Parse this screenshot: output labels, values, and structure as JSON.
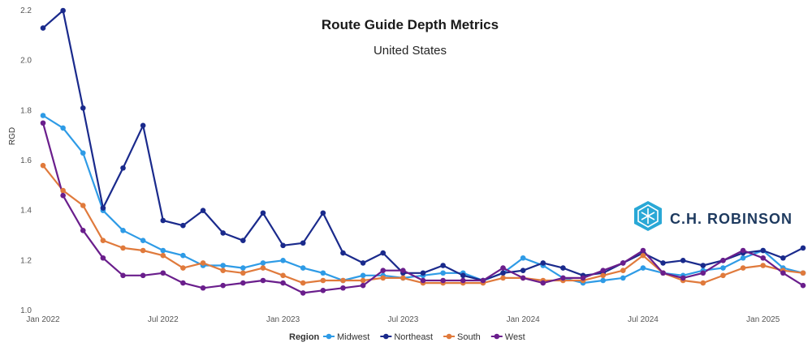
{
  "chart_data": {
    "type": "line",
    "title": "Route Guide Depth Metrics",
    "subtitle": "United States",
    "ylabel": "RGD",
    "ylim": [
      1.0,
      2.2
    ],
    "y_ticks": [
      "1.0",
      "1.2",
      "1.4",
      "1.6",
      "1.8",
      "2.0",
      "2.2"
    ],
    "x_ticks": [
      "Jan 2022",
      "Jul 2022",
      "Jan 2023",
      "Jul 2023",
      "Jan 2024",
      "Jul 2024",
      "Jan 2025"
    ],
    "grid": false,
    "legend_title": "Region",
    "legend_position": "bottom",
    "brand": "C.H. ROBINSON",
    "series": [
      {
        "name": "Midwest",
        "color": "#2e9be6",
        "values": [
          1.78,
          1.73,
          1.63,
          1.4,
          1.32,
          1.28,
          1.24,
          1.22,
          1.18,
          1.18,
          1.17,
          1.19,
          1.2,
          1.17,
          1.15,
          1.12,
          1.14,
          1.14,
          1.13,
          1.14,
          1.15,
          1.15,
          1.12,
          1.15,
          1.21,
          1.18,
          1.13,
          1.11,
          1.12,
          1.13,
          1.17,
          1.15,
          1.14,
          1.16,
          1.17,
          1.21,
          1.24,
          1.17,
          1.15
        ]
      },
      {
        "name": "Northeast",
        "color": "#1a2a8c",
        "values": [
          2.13,
          2.2,
          1.81,
          1.41,
          1.57,
          1.74,
          1.36,
          1.34,
          1.4,
          1.31,
          1.28,
          1.39,
          1.26,
          1.27,
          1.39,
          1.23,
          1.19,
          1.23,
          1.15,
          1.15,
          1.18,
          1.14,
          1.12,
          1.15,
          1.16,
          1.19,
          1.17,
          1.14,
          1.15,
          1.19,
          1.23,
          1.19,
          1.2,
          1.18,
          1.2,
          1.23,
          1.24,
          1.21,
          1.25
        ]
      },
      {
        "name": "South",
        "color": "#e07a3c",
        "values": [
          1.58,
          1.48,
          1.42,
          1.28,
          1.25,
          1.24,
          1.22,
          1.17,
          1.19,
          1.16,
          1.15,
          1.17,
          1.14,
          1.11,
          1.12,
          1.12,
          1.12,
          1.13,
          1.13,
          1.11,
          1.11,
          1.11,
          1.11,
          1.13,
          1.13,
          1.12,
          1.12,
          1.12,
          1.14,
          1.16,
          1.22,
          1.15,
          1.12,
          1.11,
          1.14,
          1.17,
          1.18,
          1.16,
          1.15
        ]
      },
      {
        "name": "West",
        "color": "#6a1e8c",
        "values": [
          1.75,
          1.46,
          1.32,
          1.21,
          1.14,
          1.14,
          1.15,
          1.11,
          1.09,
          1.1,
          1.11,
          1.12,
          1.11,
          1.07,
          1.08,
          1.09,
          1.1,
          1.16,
          1.16,
          1.12,
          1.12,
          1.12,
          1.12,
          1.17,
          1.13,
          1.11,
          1.13,
          1.13,
          1.16,
          1.19,
          1.24,
          1.15,
          1.13,
          1.15,
          1.2,
          1.24,
          1.21,
          1.15,
          1.1
        ]
      }
    ]
  }
}
